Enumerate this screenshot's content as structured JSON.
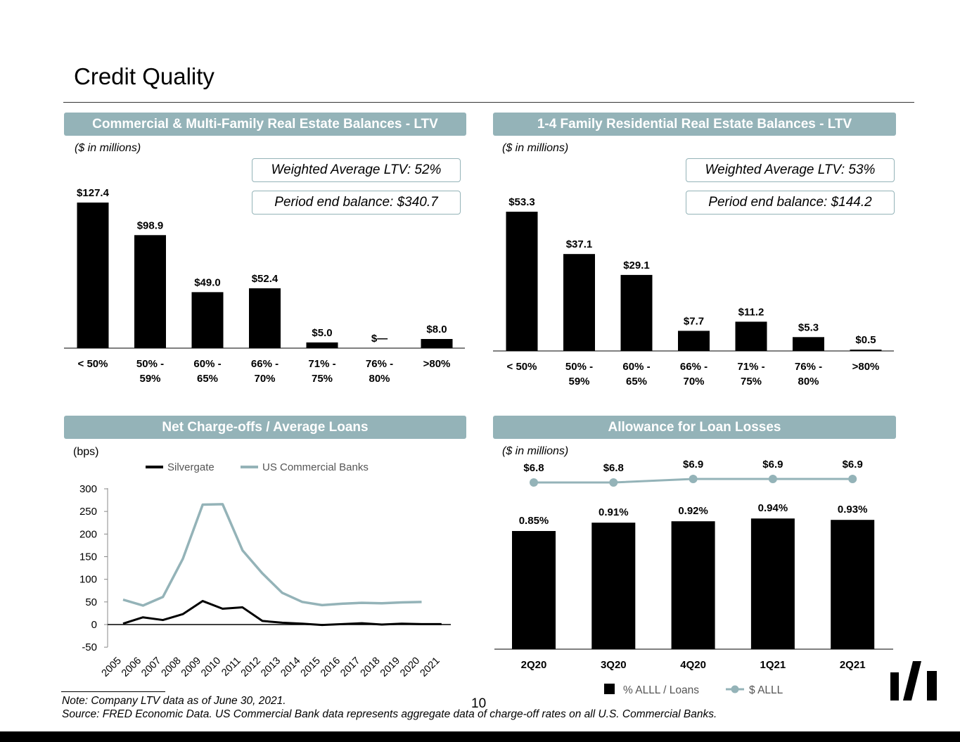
{
  "page": {
    "title": "Credit Quality",
    "page_number": "10"
  },
  "panels": {
    "cre": {
      "header": "Commercial & Multi-Family Real Estate Balances - LTV",
      "unit": "($ in millions)",
      "wavg": "Weighted Average LTV: 52%",
      "balance": "Period end balance: $340.7"
    },
    "resi": {
      "header": "1-4 Family Residential Real Estate Balances - LTV",
      "unit": "($ in millions)",
      "wavg": "Weighted Average LTV: 53%",
      "balance": "Period end balance: $144.2"
    },
    "nco": {
      "header": "Net Charge-offs / Average Loans",
      "unit": "(bps)"
    },
    "alll": {
      "header": "Allowance for Loan Losses",
      "unit": "($ in millions)"
    }
  },
  "chart_data": [
    {
      "id": "cre",
      "type": "bar",
      "categories": [
        [
          "< 50%"
        ],
        [
          "50% -",
          "59%"
        ],
        [
          "60% -",
          "65%"
        ],
        [
          "66% -",
          "70%"
        ],
        [
          "71% -",
          "75%"
        ],
        [
          "76% -",
          "80%"
        ],
        [
          ">80%"
        ]
      ],
      "values": [
        127.4,
        98.9,
        49.0,
        52.4,
        5.0,
        0,
        8.0
      ],
      "labels": [
        "$127.4",
        "$98.9",
        "$49.0",
        "$52.4",
        "$5.0",
        "$—",
        "$8.0"
      ],
      "color": "#000000"
    },
    {
      "id": "resi",
      "type": "bar",
      "categories": [
        [
          "< 50%"
        ],
        [
          "50% -",
          "59%"
        ],
        [
          "60% -",
          "65%"
        ],
        [
          "66% -",
          "70%"
        ],
        [
          "71% -",
          "75%"
        ],
        [
          "76% -",
          "80%"
        ],
        [
          ">80%"
        ]
      ],
      "values": [
        53.3,
        37.1,
        29.1,
        7.7,
        11.2,
        5.3,
        0.5
      ],
      "labels": [
        "$53.3",
        "$37.1",
        "$29.1",
        "$7.7",
        "$11.2",
        "$5.3",
        "$0.5"
      ],
      "color": "#000000"
    },
    {
      "id": "nco",
      "type": "line",
      "x": [
        "2005",
        "2006",
        "2007",
        "2008",
        "2009",
        "2010",
        "2011",
        "2012",
        "2013",
        "2014",
        "2015",
        "2016",
        "2017",
        "2018",
        "2019",
        "2020",
        "2021"
      ],
      "ylim": [
        -50,
        300
      ],
      "yticks": [
        300,
        250,
        200,
        150,
        100,
        50,
        0,
        -50
      ],
      "series": [
        {
          "name": "Silvergate",
          "color": "#000000",
          "values": [
            2,
            16,
            10,
            23,
            52,
            35,
            38,
            8,
            4,
            2,
            -1,
            1,
            3,
            0,
            2,
            1,
            1
          ]
        },
        {
          "name": "US Commercial Banks",
          "color": "#94b3b8",
          "values": [
            55,
            42,
            61,
            145,
            265,
            266,
            164,
            113,
            70,
            50,
            43,
            46,
            48,
            47,
            49,
            50,
            null
          ]
        }
      ]
    },
    {
      "id": "alll",
      "type": "bar",
      "categories": [
        "2Q20",
        "3Q20",
        "4Q20",
        "1Q21",
        "2Q21"
      ],
      "series": [
        {
          "name": "% ALLL / Loans",
          "color": "#000000",
          "values": [
            0.85,
            0.91,
            0.92,
            0.94,
            0.93
          ],
          "labels": [
            "0.85%",
            "0.91%",
            "0.92%",
            "0.94%",
            "0.93%"
          ]
        },
        {
          "name": "$ ALLL",
          "type": "line",
          "color": "#94b3b8",
          "values": [
            6.8,
            6.8,
            6.9,
            6.9,
            6.9
          ],
          "labels": [
            "$6.8",
            "$6.8",
            "$6.9",
            "$6.9",
            "$6.9"
          ]
        }
      ]
    }
  ],
  "footnotes": {
    "note": "Note: Company LTV data as of June 30, 2021.",
    "source": "Source: FRED Economic Data. US Commercial Bank data represents aggregate data of charge-off rates on all U.S. Commercial Banks."
  }
}
